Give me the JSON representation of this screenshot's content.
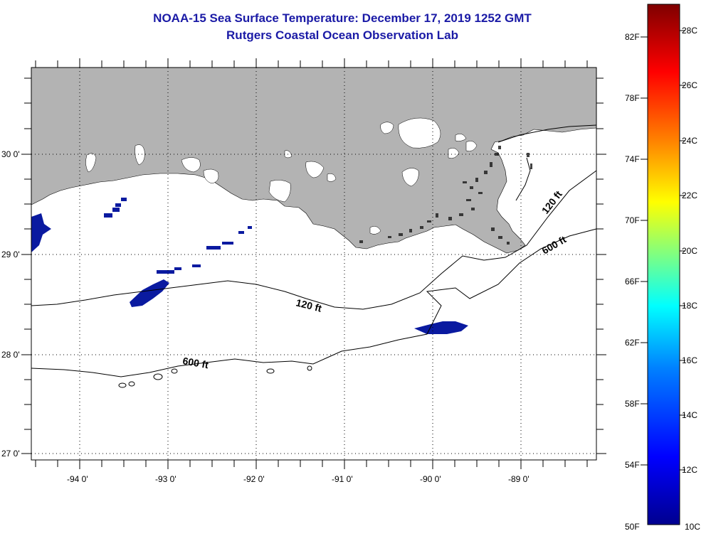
{
  "title": {
    "line1": "NOAA-15 Sea Surface Temperature:  December 17, 2019 1252 GMT",
    "line2": "Rutgers Coastal Ocean Observation Lab"
  },
  "axes": {
    "lon_labels": [
      "-94 0'",
      "-93 0'",
      "-92 0'",
      "-91 0'",
      "-90 0'",
      "-89 0'"
    ],
    "lat_labels": [
      "30 0'",
      "29 0'",
      "28 0'",
      "27 0'"
    ]
  },
  "contours": {
    "c120_a": "120 ft",
    "c120_b": "120 ft",
    "c600_a": "600 ft",
    "c600_b": "600 ft"
  },
  "colorbar": {
    "fahrenheit": [
      "82F",
      "78F",
      "74F",
      "70F",
      "66F",
      "62F",
      "58F",
      "54F",
      "50F"
    ],
    "celsius": [
      "28C",
      "26C",
      "24C",
      "22C",
      "20C",
      "18C",
      "16C",
      "14C",
      "12C",
      "10C"
    ],
    "colors": [
      "#7f0000",
      "#ff0000",
      "#ff8000",
      "#ffff00",
      "#80ff80",
      "#00ffff",
      "#0080ff",
      "#0000ff",
      "#00008f"
    ]
  },
  "colors": {
    "land": "#b3b3b3",
    "title": "#1a1aa6",
    "sst_cold": "#0a1aa0"
  }
}
